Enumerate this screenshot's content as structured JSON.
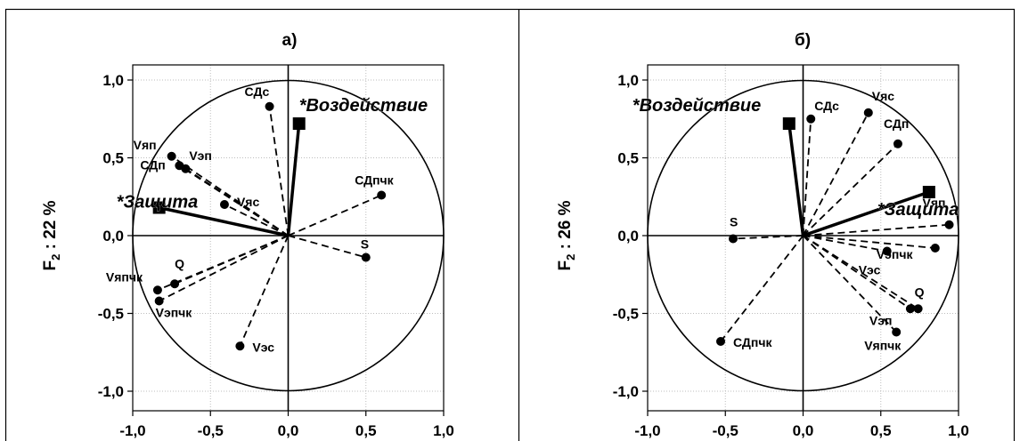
{
  "chart_data": [
    {
      "type": "scatter",
      "panel_label": "а)",
      "ylabel": "F2 : 22 %",
      "ylabel_main": "F",
      "ylabel_sub": "2",
      "ylabel_rest": " : 22 %",
      "xlim": [
        -1.0,
        1.0
      ],
      "ylim": [
        -1.0,
        1.0
      ],
      "xticks": [
        "-1,0",
        "-0,5",
        "0,0",
        "0,5",
        "1,0"
      ],
      "yticks": [
        "1,0",
        "0,5",
        "0,0",
        "-0,5",
        "-1,0"
      ],
      "grid": true,
      "unit_circle": true,
      "factor_points": [
        {
          "label": "*Воздействие",
          "x": 0.07,
          "y": 0.72
        },
        {
          "label": "*Защита",
          "x": -0.83,
          "y": 0.18
        }
      ],
      "variable_points": [
        {
          "label": "СДс",
          "x": -0.12,
          "y": 0.83
        },
        {
          "label": "Vяп",
          "x": -0.75,
          "y": 0.51
        },
        {
          "label": "Vэп",
          "x": -0.66,
          "y": 0.43
        },
        {
          "label": "СДп",
          "x": -0.7,
          "y": 0.45
        },
        {
          "label": "Vяс",
          "x": -0.41,
          "y": 0.2
        },
        {
          "label": "СДпчк",
          "x": 0.6,
          "y": 0.26
        },
        {
          "label": "S",
          "x": 0.5,
          "y": -0.14
        },
        {
          "label": "Q",
          "x": -0.73,
          "y": -0.31
        },
        {
          "label": "Vяпчк",
          "x": -0.84,
          "y": -0.35
        },
        {
          "label": "Vэпчк",
          "x": -0.83,
          "y": -0.42
        },
        {
          "label": "Vэс",
          "x": -0.31,
          "y": -0.71
        }
      ]
    },
    {
      "type": "scatter",
      "panel_label": "б)",
      "ylabel": "F2 : 26 %",
      "ylabel_main": "F",
      "ylabel_sub": "2",
      "ylabel_rest": " : 26 %",
      "xlim": [
        -1.0,
        1.0
      ],
      "ylim": [
        -1.0,
        1.0
      ],
      "xticks": [
        "-1,0",
        "-0,5",
        "0,0",
        "0,5",
        "1,0"
      ],
      "yticks": [
        "1,0",
        "0,5",
        "0,0",
        "-0,5",
        "-1,0"
      ],
      "grid": true,
      "unit_circle": true,
      "factor_points": [
        {
          "label": "*Воздействие",
          "x": -0.09,
          "y": 0.72
        },
        {
          "label": "*Защита",
          "x": 0.81,
          "y": 0.28
        }
      ],
      "variable_points": [
        {
          "label": "СДс",
          "x": 0.05,
          "y": 0.75
        },
        {
          "label": "Vяс",
          "x": 0.42,
          "y": 0.79
        },
        {
          "label": "СДп",
          "x": 0.61,
          "y": 0.59
        },
        {
          "label": "Vяп",
          "x": 0.94,
          "y": 0.07
        },
        {
          "label": "Vэпчк",
          "x": 0.85,
          "y": -0.08
        },
        {
          "label": "Vэс",
          "x": 0.54,
          "y": -0.1
        },
        {
          "label": "Q",
          "x": 0.74,
          "y": -0.47
        },
        {
          "label": "Vэп",
          "x": 0.69,
          "y": -0.47
        },
        {
          "label": "Vяпчк",
          "x": 0.6,
          "y": -0.62
        },
        {
          "label": "S",
          "x": -0.45,
          "y": -0.02
        },
        {
          "label": "СДпчк",
          "x": -0.53,
          "y": -0.68
        }
      ]
    }
  ]
}
